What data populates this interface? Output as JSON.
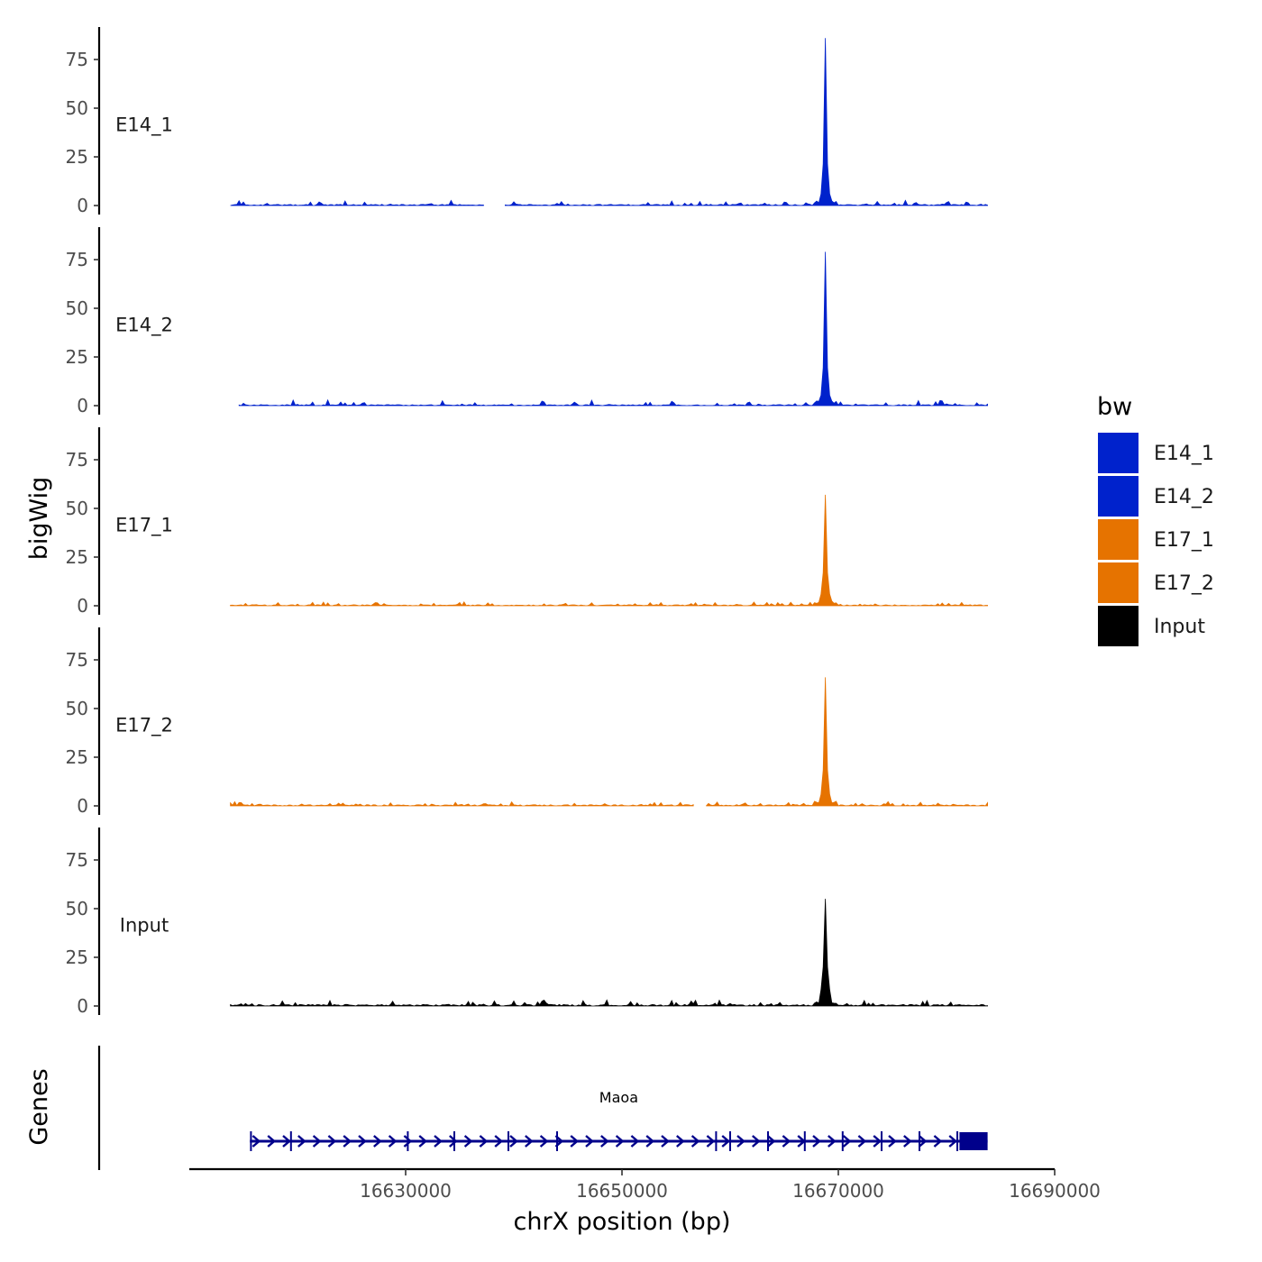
{
  "chart_data": {
    "type": "area",
    "xlabel": "chrX position (bp)",
    "ylabel": "bigWig",
    "genes_track_label": "Genes",
    "x_range": [
      16610000,
      16690000
    ],
    "x_ticks": [
      16630000,
      16650000,
      16670000,
      16690000
    ],
    "x_tick_labels": [
      "16630000",
      "16650000",
      "16670000",
      "16690000"
    ],
    "y_range": [
      0,
      90
    ],
    "y_ticks": [
      0,
      25,
      50,
      75
    ],
    "y_tick_labels": [
      "0",
      "25",
      "50",
      "75"
    ],
    "data_x_range": [
      16613800,
      16683800
    ],
    "peak_position": 16668800,
    "legend": {
      "title": "bw",
      "entries": [
        {
          "label": "E14_1",
          "color": "#0022CC"
        },
        {
          "label": "E14_2",
          "color": "#0022CC"
        },
        {
          "label": "E17_1",
          "color": "#E67300"
        },
        {
          "label": "E17_2",
          "color": "#E67300"
        },
        {
          "label": "Input",
          "color": "#000000"
        }
      ]
    },
    "series": [
      {
        "name": "E14_1",
        "color": "#0022CC",
        "peak_max": 86,
        "shoulder": 10,
        "baseline": 0.6,
        "noise_max": 2.2,
        "start": 16613800,
        "gaps": [
          [
            16637400,
            16639000
          ]
        ]
      },
      {
        "name": "E14_2",
        "color": "#0022CC",
        "peak_max": 79,
        "shoulder": 9,
        "baseline": 0.5,
        "noise_max": 2.4,
        "start": 16614600,
        "gaps": []
      },
      {
        "name": "E17_1",
        "color": "#E67300",
        "peak_max": 57,
        "shoulder": 10,
        "baseline": 0.5,
        "noise_max": 1.6,
        "start": 16613800,
        "gaps": []
      },
      {
        "name": "E17_2",
        "color": "#E67300",
        "peak_max": 66,
        "shoulder": 10,
        "baseline": 0.6,
        "noise_max": 1.6,
        "start": 16613800,
        "gaps": [
          [
            16656800,
            16657600
          ]
        ]
      },
      {
        "name": "Input",
        "color": "#000000",
        "peak_max": 55,
        "shoulder": 14,
        "baseline": 0.8,
        "noise_max": 2.4,
        "start": 16613800,
        "gaps": []
      }
    ],
    "gene": {
      "name": "Maoa",
      "strand": "+",
      "start": 16615600,
      "end": 16683800,
      "color": "#00008B",
      "thick_start": 16681200,
      "exon_marks": [
        16615700,
        16619400,
        16630200,
        16634500,
        16639500,
        16644000,
        16658700,
        16660000,
        16663500,
        16666900,
        16670400,
        16674000,
        16677500,
        16681000
      ]
    }
  }
}
